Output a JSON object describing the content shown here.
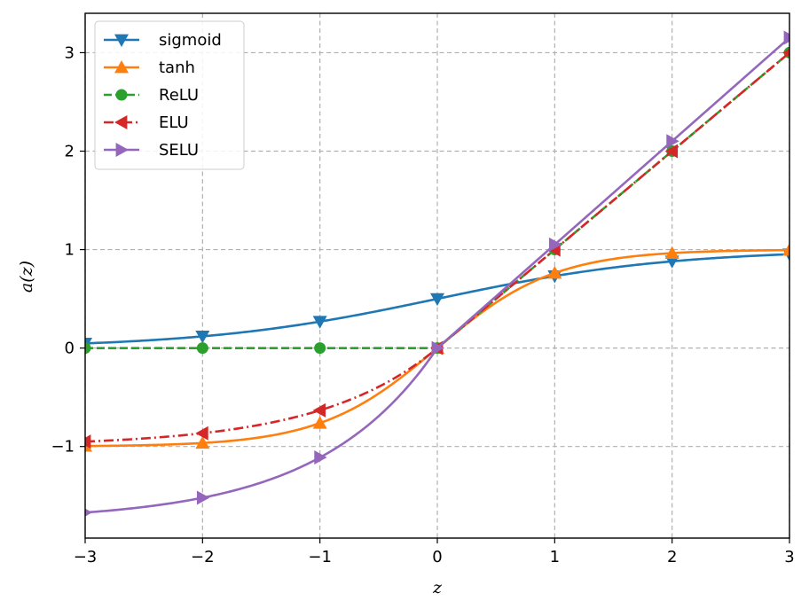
{
  "chart_data": {
    "type": "line",
    "title": "",
    "xlabel": "z",
    "ylabel": "a(z)",
    "xlim": [
      -3,
      3
    ],
    "ylim": [
      -1.93,
      3.4
    ],
    "grid": true,
    "grid_style": "dashed",
    "legend_position": "top-left",
    "x_ticks": [
      -3,
      -2,
      -1,
      0,
      1,
      2,
      3
    ],
    "x_tick_labels": [
      "−3",
      "−2",
      "−1",
      "0",
      "1",
      "2",
      "3"
    ],
    "y_ticks": [
      -1,
      0,
      1,
      2,
      3
    ],
    "y_tick_labels": [
      "−1",
      "0",
      "1",
      "2",
      "3"
    ],
    "marker_x": [
      -3,
      -2,
      -1,
      0,
      1,
      2,
      3
    ],
    "series": [
      {
        "name": "sigmoid",
        "function": "sigmoid",
        "color": "#1f77b4",
        "linestyle": "solid",
        "marker": "triangle-down",
        "marker_values": [
          0.047,
          0.119,
          0.269,
          0.5,
          0.731,
          0.881,
          0.953
        ]
      },
      {
        "name": "tanh",
        "function": "tanh",
        "color": "#ff7f0e",
        "linestyle": "solid",
        "marker": "triangle-up",
        "marker_values": [
          -0.995,
          -0.964,
          -0.762,
          0.0,
          0.762,
          0.964,
          0.995
        ]
      },
      {
        "name": "ReLU",
        "function": "relu",
        "color": "#2ca02c",
        "linestyle": "dashed",
        "marker": "circle",
        "marker_values": [
          0,
          0,
          0,
          0,
          1,
          2,
          3
        ]
      },
      {
        "name": "ELU",
        "function": "elu",
        "color": "#d62728",
        "linestyle": "dashdot",
        "marker": "triangle-left",
        "marker_values": [
          -0.95,
          -0.865,
          -0.632,
          0,
          1,
          2,
          3
        ]
      },
      {
        "name": "SELU",
        "function": "selu",
        "color": "#9467bd",
        "linestyle": "solid",
        "marker": "triangle-right",
        "marker_values": [
          -1.67,
          -1.52,
          -1.111,
          0,
          1.051,
          2.101,
          3.152
        ]
      }
    ]
  }
}
